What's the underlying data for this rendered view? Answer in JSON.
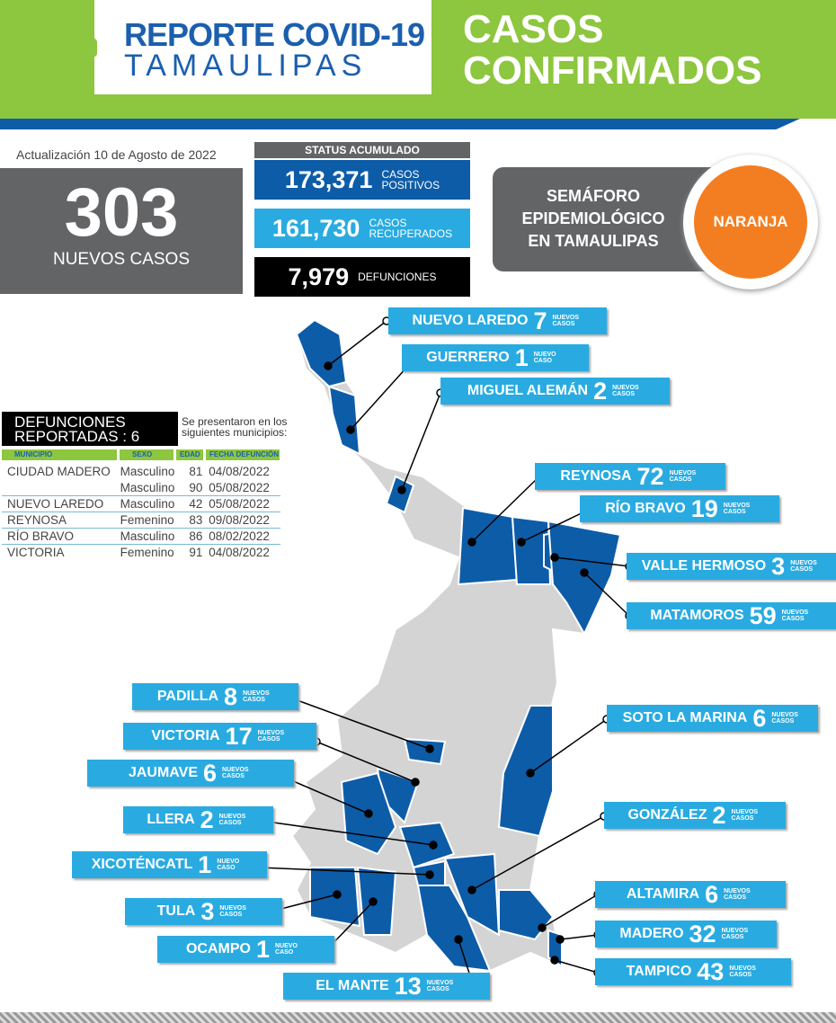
{
  "header": {
    "logo_line1": "REPORTE COVID-19",
    "logo_line2": "TAMAULIPAS",
    "title_line1": "CASOS",
    "title_line2": "CONFIRMADOS"
  },
  "update": "Actualización  10 de Agosto de 2022",
  "new_cases": {
    "value": "303",
    "label": "NUEVOS CASOS"
  },
  "status": {
    "title": "STATUS ACUMULADO",
    "items": [
      {
        "value": "173,371",
        "label1": "CASOS",
        "label2": "POSITIVOS",
        "color": "#0d5ca8"
      },
      {
        "value": "161,730",
        "label1": "CASOS",
        "label2": "RECUPERADOS",
        "color": "#29abe2"
      },
      {
        "value": "7,979",
        "label1": "DEFUNCIONES",
        "label2": "",
        "color": "#000000"
      }
    ]
  },
  "semaforo": {
    "line1": "SEMÁFORO",
    "line2": "EPIDEMIOLÓGICO",
    "line3": "EN TAMAULIPAS",
    "level": "NARANJA",
    "color": "#f37e21"
  },
  "deaths": {
    "title1": "DEFUNCIONES",
    "title2": "REPORTADAS : 6",
    "note1": "Se presentaron en los",
    "note2": "siguientes municipios:",
    "headers": [
      "MUNICIPIO",
      "SEXO",
      "EDAD",
      "FECHA DEFUNCIÓN"
    ],
    "rows": [
      [
        "CIUDAD MADERO",
        "Masculino",
        "81",
        "04/08/2022"
      ],
      [
        "",
        "Masculino",
        "90",
        "05/08/2022"
      ],
      [
        "NUEVO LAREDO",
        "Masculino",
        "42",
        "05/08/2022"
      ],
      [
        "REYNOSA",
        "Femenino",
        "83",
        "09/08/2022"
      ],
      [
        "RÍO BRAVO",
        "Masculino",
        "86",
        "08/02/2022"
      ],
      [
        "VICTORIA",
        "Femenino",
        "91",
        "04/08/2022"
      ]
    ]
  },
  "municipios": [
    {
      "name": "NUEVO LAREDO",
      "cases": "7",
      "suffix": "NUEVOS CASOS"
    },
    {
      "name": "GUERRERO",
      "cases": "1",
      "suffix": "NUEVO CASO"
    },
    {
      "name": "MIGUEL ALEMÁN",
      "cases": "2",
      "suffix": "NUEVOS CASOS"
    },
    {
      "name": "REYNOSA",
      "cases": "72",
      "suffix": "NUEVOS CASOS"
    },
    {
      "name": "RÍO BRAVO",
      "cases": "19",
      "suffix": "NUEVOS CASOS"
    },
    {
      "name": "VALLE HERMOSO",
      "cases": "3",
      "suffix": "NUEVOS CASOS"
    },
    {
      "name": "MATAMOROS",
      "cases": "59",
      "suffix": "NUEVOS CASOS"
    },
    {
      "name": "PADILLA",
      "cases": "8",
      "suffix": "NUEVOS CASOS"
    },
    {
      "name": "VICTORIA",
      "cases": "17",
      "suffix": "NUEVOS CASOS"
    },
    {
      "name": "JAUMAVE",
      "cases": "6",
      "suffix": "NUEVOS CASOS"
    },
    {
      "name": "LLERA",
      "cases": "2",
      "suffix": "NUEVOS CASOS"
    },
    {
      "name": "XICOTÉNCATL",
      "cases": "1",
      "suffix": "NUEVO CASO"
    },
    {
      "name": "TULA",
      "cases": "3",
      "suffix": "NUEVOS CASOS"
    },
    {
      "name": "OCAMPO",
      "cases": "1",
      "suffix": "NUEVO CASO"
    },
    {
      "name": "EL MANTE",
      "cases": "13",
      "suffix": "NUEVOS CASOS"
    },
    {
      "name": "SOTO LA MARINA",
      "cases": "6",
      "suffix": "NUEVOS CASOS"
    },
    {
      "name": "GONZÁLEZ",
      "cases": "2",
      "suffix": "NUEVOS CASOS"
    },
    {
      "name": "ALTAMIRA",
      "cases": "6",
      "suffix": "NUEVOS CASOS"
    },
    {
      "name": "MADERO",
      "cases": "32",
      "suffix": "NUEVOS CASOS"
    },
    {
      "name": "TAMPICO",
      "cases": "43",
      "suffix": "NUEVOS CASOS"
    }
  ],
  "colors": {
    "green": "#8dc63f",
    "dark_blue": "#0d5ca8",
    "light_blue": "#29abe2",
    "gray": "#636466",
    "map_gray": "#d4d4d4"
  }
}
